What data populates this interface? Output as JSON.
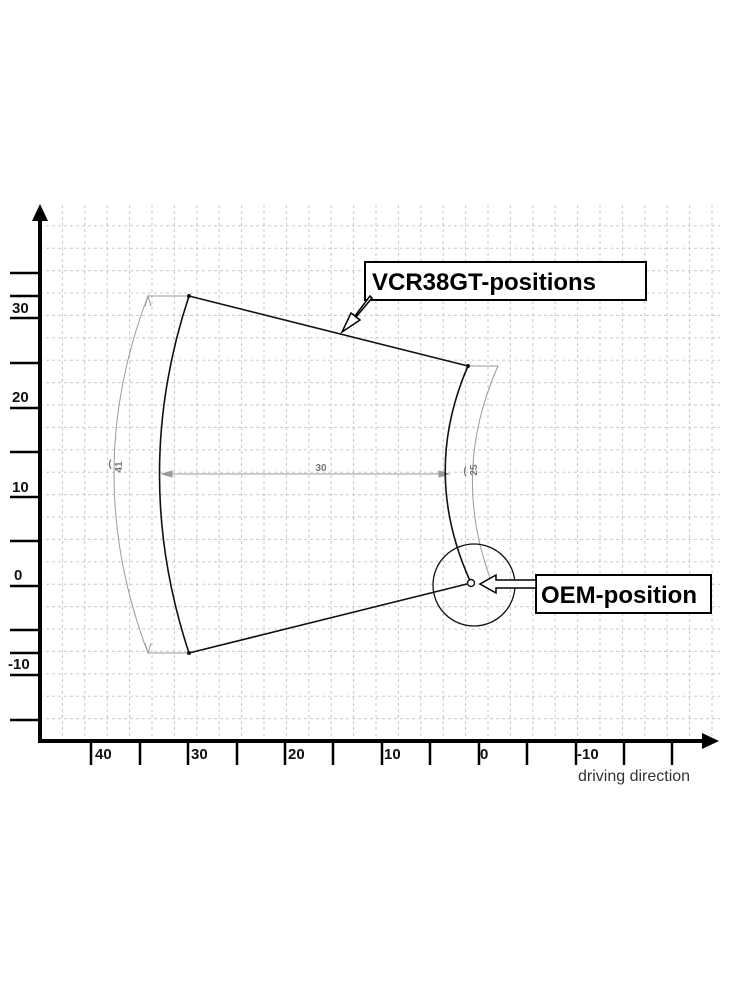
{
  "diagram": {
    "y_tick_labels": [
      "30",
      "20",
      "10",
      "0",
      "-10"
    ],
    "x_tick_labels": [
      "40",
      "30",
      "20",
      "10",
      "0",
      "-10"
    ],
    "x_axis_caption": "driving direction",
    "dimensions": {
      "outer_radius": "41",
      "width": "30",
      "inner_radius": "25"
    },
    "callouts": {
      "vcr": "VCR38GT-positions",
      "oem": "OEM-position"
    }
  },
  "colors": {
    "grid": "#c8c8c8",
    "axis": "#000000",
    "outline": "#111111",
    "dimension": "#9a9a9a"
  },
  "icons": [
    "y-axis-arrow-icon",
    "x-axis-arrow-icon",
    "callout-arrow-icon",
    "oem-point-icon"
  ]
}
